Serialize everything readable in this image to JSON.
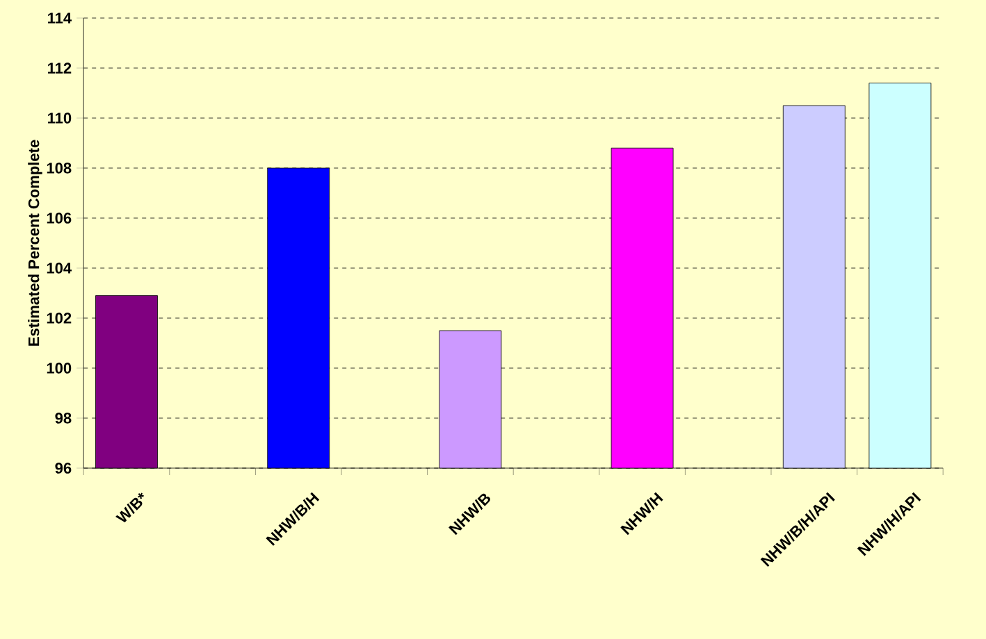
{
  "chart_data": {
    "type": "bar",
    "ylabel": "Estimated Percent Complete",
    "categories": [
      "W/B*",
      null,
      "NHW/B/H",
      null,
      "NHW/B",
      null,
      "NHW/H",
      null,
      "NHW/B/H/API",
      "NHW/H/API"
    ],
    "values": [
      102.9,
      null,
      108.0,
      null,
      101.5,
      null,
      108.8,
      null,
      110.5,
      111.4
    ],
    "colors": [
      "#800080",
      null,
      "#0000ff",
      null,
      "#cc99ff",
      null,
      "#ff00ff",
      null,
      "#ccccff",
      "#ccffff"
    ],
    "ylim": [
      96,
      114
    ],
    "yticks": [
      96,
      98,
      100,
      102,
      104,
      106,
      108,
      110,
      112,
      114
    ],
    "grid": "y"
  }
}
